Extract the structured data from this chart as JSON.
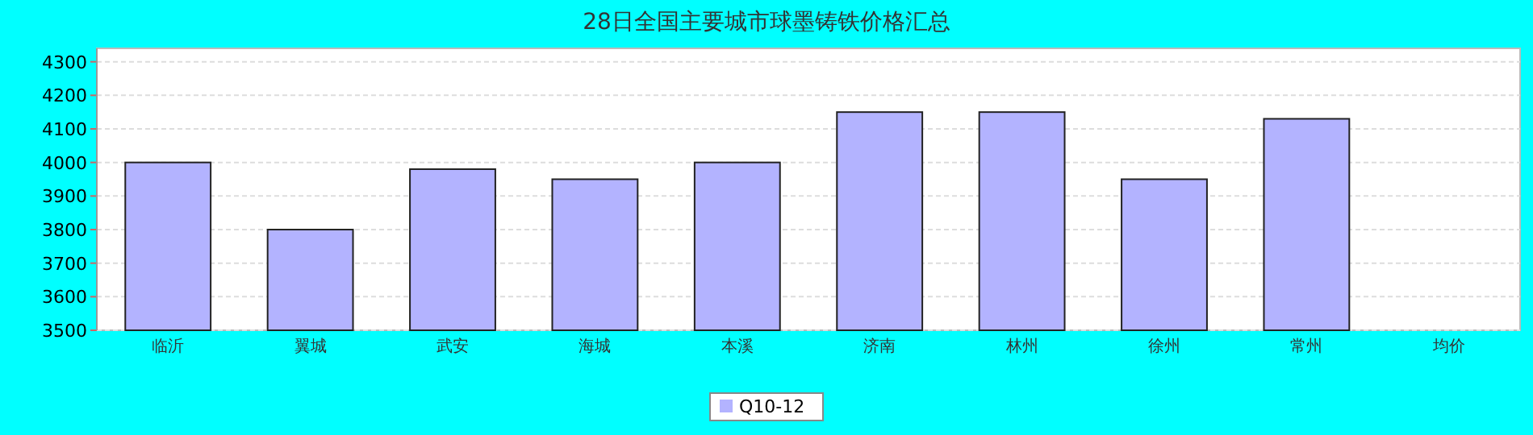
{
  "chart_data": {
    "type": "bar",
    "title": "28日全国主要城市球墨铸铁价格汇总",
    "categories": [
      "临沂",
      "翼城",
      "武安",
      "海城",
      "本溪",
      "济南",
      "林州",
      "徐州",
      "常州",
      "均价"
    ],
    "series": [
      {
        "name": "Q10-12",
        "color": "#b3b3ff",
        "values": [
          4000,
          3800,
          3980,
          3950,
          4000,
          4150,
          4150,
          3950,
          4130,
          null
        ]
      }
    ],
    "ylim": [
      3500,
      4340
    ],
    "yticks": [
      3500,
      3600,
      3700,
      3800,
      3900,
      4000,
      4100,
      4200,
      4300
    ],
    "grid": "y",
    "legend": "bottom"
  }
}
